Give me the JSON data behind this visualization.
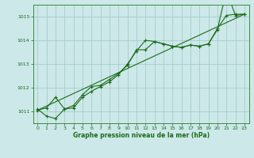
{
  "line1": {
    "x": [
      0,
      1,
      2,
      3,
      4,
      5,
      6,
      7,
      8,
      9,
      10,
      11,
      12,
      13,
      14,
      15,
      16,
      17,
      18,
      19,
      20,
      21,
      22,
      23
    ],
    "y": [
      1011.1,
      1010.8,
      1010.7,
      1011.1,
      1011.15,
      1011.6,
      1011.85,
      1012.05,
      1012.25,
      1012.55,
      1013.0,
      1013.55,
      1014.0,
      1013.95,
      1013.85,
      1013.75,
      1013.7,
      1013.8,
      1013.75,
      1013.85,
      1014.45,
      1016.1,
      1015.05,
      1015.1
    ]
  },
  "line2": {
    "x": [
      0,
      1,
      2,
      3,
      4,
      5,
      6,
      7,
      8,
      9,
      10,
      11,
      12,
      13,
      14,
      15,
      16,
      17,
      18,
      19,
      20,
      21,
      22,
      23
    ],
    "y": [
      1011.05,
      1011.15,
      1011.6,
      1011.1,
      1011.25,
      1011.7,
      1012.05,
      1012.1,
      1012.35,
      1012.6,
      1012.95,
      1013.6,
      1013.6,
      1013.95,
      1013.85,
      1013.75,
      1013.7,
      1013.8,
      1013.75,
      1013.85,
      1014.5,
      1015.05,
      1015.1,
      1015.1
    ]
  },
  "line3": {
    "x": [
      0,
      23
    ],
    "y": [
      1011.05,
      1015.1
    ]
  },
  "ylim": [
    1010.5,
    1015.5
  ],
  "xlim": [
    -0.5,
    23.5
  ],
  "yticks": [
    1011,
    1012,
    1013,
    1014,
    1015
  ],
  "xticks": [
    0,
    1,
    2,
    3,
    4,
    5,
    6,
    7,
    8,
    9,
    10,
    11,
    12,
    13,
    14,
    15,
    16,
    17,
    18,
    19,
    20,
    21,
    22,
    23
  ],
  "xlabel": "Graphe pression niveau de la mer (hPa)",
  "line_color": "#1a6b1a",
  "bg_color": "#cce8e8",
  "grid_color": "#9fc8c8",
  "axis_color": "#2a7a2a",
  "tick_color": "#1a6b1a",
  "label_color": "#1a6b1a",
  "figwidth": 3.2,
  "figheight": 2.0,
  "dpi": 100
}
